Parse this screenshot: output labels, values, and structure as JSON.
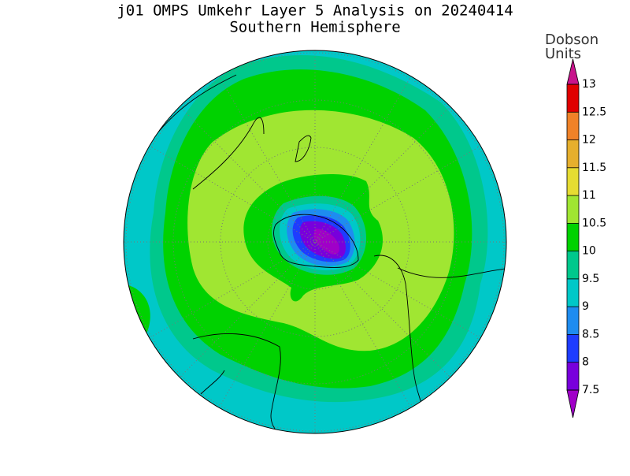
{
  "header": {
    "title": "j01 OMPS Umkehr Layer 5 Analysis on 20240414",
    "subtitle": "Southern Hemisphere"
  },
  "colorbar": {
    "units": [
      "Dobson",
      "Units"
    ],
    "levels": [
      7.5,
      8,
      8.5,
      9,
      9.5,
      10,
      10.5,
      11,
      11.5,
      12,
      12.5,
      13
    ],
    "colors": [
      "#7800dc",
      "#1e3cff",
      "#1e8cf0",
      "#00c8c8",
      "#00c88c",
      "#00d200",
      "#a0e632",
      "#e6dc32",
      "#e6af2d",
      "#f08228",
      "#e00000"
    ],
    "under_color": "#a000c8",
    "over_color": "#c8148c"
  }
}
